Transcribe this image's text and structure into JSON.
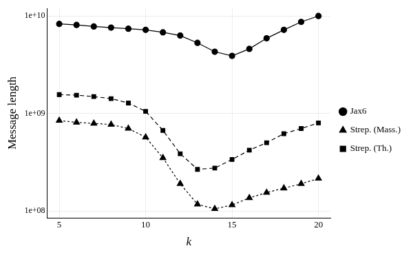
{
  "chart_data": {
    "type": "line",
    "x_label": "k",
    "y_label": "Message length",
    "x": [
      5,
      6,
      7,
      8,
      9,
      10,
      11,
      12,
      13,
      14,
      15,
      16,
      17,
      18,
      19,
      20
    ],
    "series": [
      {
        "name": "Jax6",
        "color": "#000000",
        "marker": "circle",
        "line_style": "solid",
        "values": [
          8300000000,
          8100000000,
          7800000000,
          7600000000,
          7400000000,
          7200000000,
          6800000000,
          6300000000,
          5300000000,
          4300000000,
          3900000000,
          4600000000,
          5900000000,
          7200000000,
          8700000000,
          10000000000
        ]
      },
      {
        "name": "Strep. (Mass.)",
        "color": "#000000",
        "marker": "triangle",
        "line_style": "dotted",
        "values": [
          845000000,
          810000000,
          790000000,
          770000000,
          700000000,
          570000000,
          350000000,
          190000000,
          117000000,
          105000000,
          115000000,
          136000000,
          154000000,
          171000000,
          190000000,
          215000000
        ]
      },
      {
        "name": "Strep. (Th.)",
        "color": "#000000",
        "marker": "square",
        "line_style": "dashed",
        "values": [
          1560000000,
          1540000000,
          1490000000,
          1420000000,
          1280000000,
          1050000000,
          670000000,
          386000000,
          267000000,
          275000000,
          337000000,
          420000000,
          500000000,
          620000000,
          700000000,
          800000000
        ]
      }
    ],
    "xlim": [
      4.3,
      20.7
    ],
    "xticks": [
      5,
      10,
      15,
      20
    ],
    "ylim": [
      85000000,
      12000000000
    ],
    "yticks": [
      {
        "value": 100000000,
        "label": "1e+08"
      },
      {
        "value": 1000000000,
        "label": "1e+09"
      },
      {
        "value": 10000000000,
        "label": "1e+10"
      }
    ],
    "log": "y",
    "grid": true,
    "legend": "right"
  }
}
